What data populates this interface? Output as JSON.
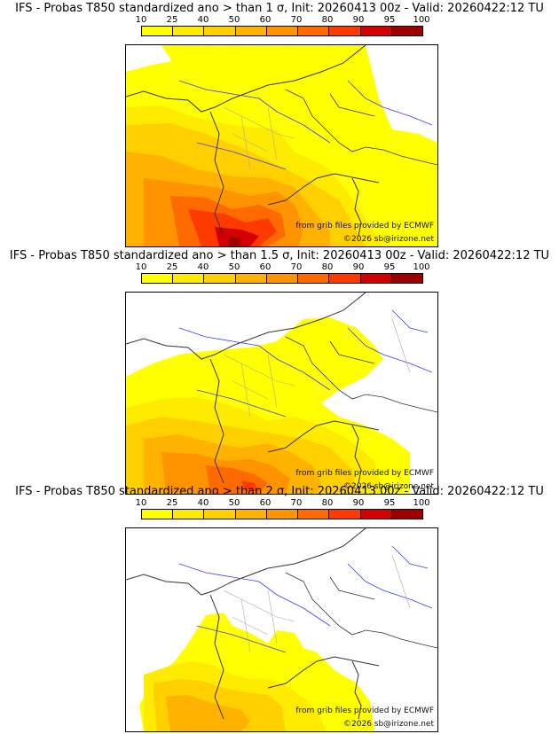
{
  "colorbar": {
    "ticks": [
      "10",
      "25",
      "40",
      "50",
      "60",
      "70",
      "80",
      "90",
      "95",
      "100"
    ],
    "colors": [
      "#ffff00",
      "#ffeb00",
      "#ffcf00",
      "#ffb300",
      "#ff9400",
      "#ff6a00",
      "#ff3a00",
      "#d40000",
      "#9e0000",
      "#620000"
    ]
  },
  "colors": {
    "border": "#333333",
    "rivers": "#3a3aff",
    "admin": "#aaaaaa",
    "background": "#ffffff"
  },
  "panels": [
    {
      "title": "IFS - Probas T850  standardized ano > than 1 σ, Init: 20260413 00z - Valid: 20260422:12 TU",
      "credit_line1": "from grib files provided by ECMWF",
      "credit_line2": "©2026 sb@irizone.net"
    },
    {
      "title": "IFS - Probas T850  standardized ano > than 1.5 σ, Init: 20260413 00z - Valid: 20260422:12 TU",
      "credit_line1": "from grib files provided by ECMWF",
      "credit_line2": "©2026 sb@irizone.net"
    },
    {
      "title": "IFS - Probas T850  standardized ano > than 2 σ, Init: 20260413 00z - Valid: 20260422:12 TU",
      "credit_line1": "from grib files provided by ECMWF",
      "credit_line2": "©2026 sb@irizone.net"
    }
  ]
}
